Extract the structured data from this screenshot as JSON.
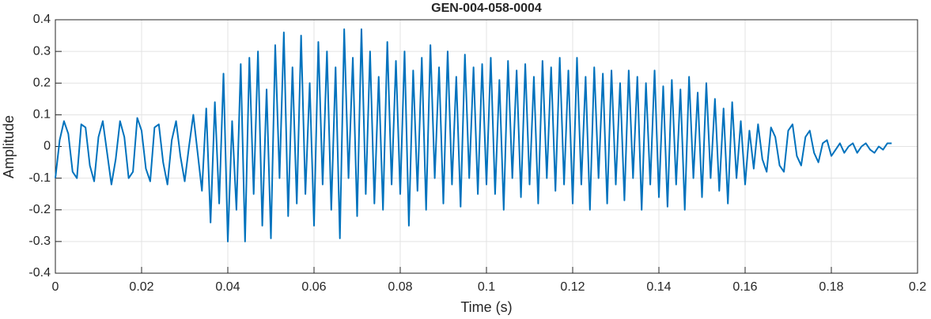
{
  "chart_data": {
    "type": "line",
    "title": "GEN-004-058-0004",
    "xlabel": "Time (s)",
    "ylabel": "Amplitude",
    "xlim": [
      0,
      0.2
    ],
    "ylim": [
      -0.4,
      0.4
    ],
    "xticks": [
      0,
      0.02,
      0.04,
      0.06,
      0.08,
      0.1,
      0.12,
      0.14,
      0.16,
      0.18,
      0.2
    ],
    "yticks": [
      -0.4,
      -0.3,
      -0.2,
      -0.1,
      0,
      0.1,
      0.2,
      0.3,
      0.4
    ],
    "grid": true,
    "x": [
      0,
      0.001,
      0.002,
      0.003,
      0.004,
      0.005,
      0.006,
      0.007,
      0.008,
      0.009,
      0.01,
      0.011,
      0.012,
      0.013,
      0.014,
      0.015,
      0.016,
      0.017,
      0.018,
      0.019,
      0.02,
      0.021,
      0.022,
      0.023,
      0.024,
      0.025,
      0.026,
      0.027,
      0.028,
      0.029,
      0.03,
      0.031,
      0.032,
      0.033,
      0.034,
      0.035,
      0.036,
      0.037,
      0.038,
      0.039,
      0.04,
      0.041,
      0.042,
      0.043,
      0.044,
      0.045,
      0.046,
      0.047,
      0.048,
      0.049,
      0.05,
      0.051,
      0.052,
      0.053,
      0.054,
      0.055,
      0.056,
      0.057,
      0.058,
      0.059,
      0.06,
      0.061,
      0.062,
      0.063,
      0.064,
      0.065,
      0.066,
      0.067,
      0.068,
      0.069,
      0.07,
      0.071,
      0.072,
      0.073,
      0.074,
      0.075,
      0.076,
      0.077,
      0.078,
      0.079,
      0.08,
      0.081,
      0.082,
      0.083,
      0.084,
      0.085,
      0.086,
      0.087,
      0.088,
      0.089,
      0.09,
      0.091,
      0.092,
      0.093,
      0.094,
      0.095,
      0.096,
      0.097,
      0.098,
      0.099,
      0.1,
      0.101,
      0.102,
      0.103,
      0.104,
      0.105,
      0.106,
      0.107,
      0.108,
      0.109,
      0.11,
      0.111,
      0.112,
      0.113,
      0.114,
      0.115,
      0.116,
      0.117,
      0.118,
      0.119,
      0.12,
      0.121,
      0.122,
      0.123,
      0.124,
      0.125,
      0.126,
      0.127,
      0.128,
      0.129,
      0.13,
      0.131,
      0.132,
      0.133,
      0.134,
      0.135,
      0.136,
      0.137,
      0.138,
      0.139,
      0.14,
      0.141,
      0.142,
      0.143,
      0.144,
      0.145,
      0.146,
      0.147,
      0.148,
      0.149,
      0.15,
      0.151,
      0.152,
      0.153,
      0.154,
      0.155,
      0.156,
      0.157,
      0.158,
      0.159,
      0.16,
      0.161,
      0.162,
      0.163,
      0.164,
      0.165,
      0.166,
      0.167,
      0.168,
      0.169,
      0.17,
      0.171,
      0.172,
      0.173,
      0.174,
      0.175,
      0.176,
      0.177,
      0.178,
      0.179,
      0.18,
      0.181,
      0.182,
      0.183,
      0.184,
      0.185,
      0.186,
      0.187,
      0.188,
      0.189,
      0.19,
      0.191,
      0.192,
      0.193,
      0.194
    ],
    "series": [
      {
        "color": "#0072bd",
        "values": [
          -0.1,
          0.02,
          0.08,
          0.04,
          -0.08,
          -0.1,
          0.07,
          0.06,
          -0.06,
          -0.11,
          0.03,
          0.08,
          -0.02,
          -0.12,
          -0.04,
          0.08,
          0.03,
          -0.1,
          -0.08,
          0.09,
          0.05,
          -0.07,
          -0.11,
          0.06,
          0.07,
          -0.05,
          -0.12,
          0.02,
          0.08,
          -0.03,
          -0.11,
          0.0,
          0.1,
          -0.02,
          -0.14,
          0.12,
          -0.24,
          0.14,
          -0.18,
          0.23,
          -0.3,
          0.08,
          -0.2,
          0.26,
          -0.3,
          0.28,
          -0.15,
          0.3,
          -0.25,
          0.18,
          -0.29,
          0.32,
          -0.1,
          0.36,
          -0.22,
          0.25,
          -0.18,
          0.35,
          -0.15,
          0.2,
          -0.25,
          0.33,
          -0.12,
          0.3,
          -0.2,
          0.25,
          -0.29,
          0.37,
          -0.1,
          0.28,
          -0.22,
          0.37,
          -0.15,
          0.3,
          -0.18,
          0.22,
          -0.2,
          0.33,
          -0.12,
          0.27,
          -0.15,
          0.3,
          -0.25,
          0.24,
          -0.14,
          0.28,
          -0.2,
          0.32,
          -0.1,
          0.25,
          -0.18,
          0.3,
          -0.12,
          0.22,
          -0.19,
          0.29,
          -0.1,
          0.25,
          -0.15,
          0.26,
          -0.12,
          0.28,
          -0.15,
          0.21,
          -0.2,
          0.27,
          -0.1,
          0.24,
          -0.16,
          0.26,
          -0.12,
          0.22,
          -0.18,
          0.27,
          -0.1,
          0.25,
          -0.14,
          0.28,
          -0.12,
          0.24,
          -0.18,
          0.28,
          -0.12,
          0.22,
          -0.2,
          0.25,
          -0.1,
          0.23,
          -0.18,
          0.24,
          -0.12,
          0.2,
          -0.17,
          0.24,
          -0.1,
          0.22,
          -0.2,
          0.2,
          -0.12,
          0.24,
          -0.16,
          0.19,
          -0.19,
          0.21,
          -0.12,
          0.18,
          -0.2,
          0.22,
          -0.1,
          0.17,
          -0.16,
          0.2,
          -0.1,
          0.15,
          -0.14,
          0.12,
          -0.18,
          0.14,
          -0.1,
          0.08,
          -0.12,
          0.05,
          -0.07,
          0.07,
          -0.04,
          -0.08,
          0.06,
          0.03,
          -0.06,
          -0.08,
          0.05,
          0.07,
          -0.03,
          -0.06,
          0.03,
          0.05,
          -0.02,
          -0.05,
          0.01,
          0.02,
          -0.03,
          -0.01,
          0.01,
          -0.02,
          0.0,
          0.01,
          -0.02,
          0.0,
          0.01,
          -0.01,
          -0.02,
          0.0,
          -0.01,
          0.01,
          0.01
        ]
      }
    ]
  }
}
